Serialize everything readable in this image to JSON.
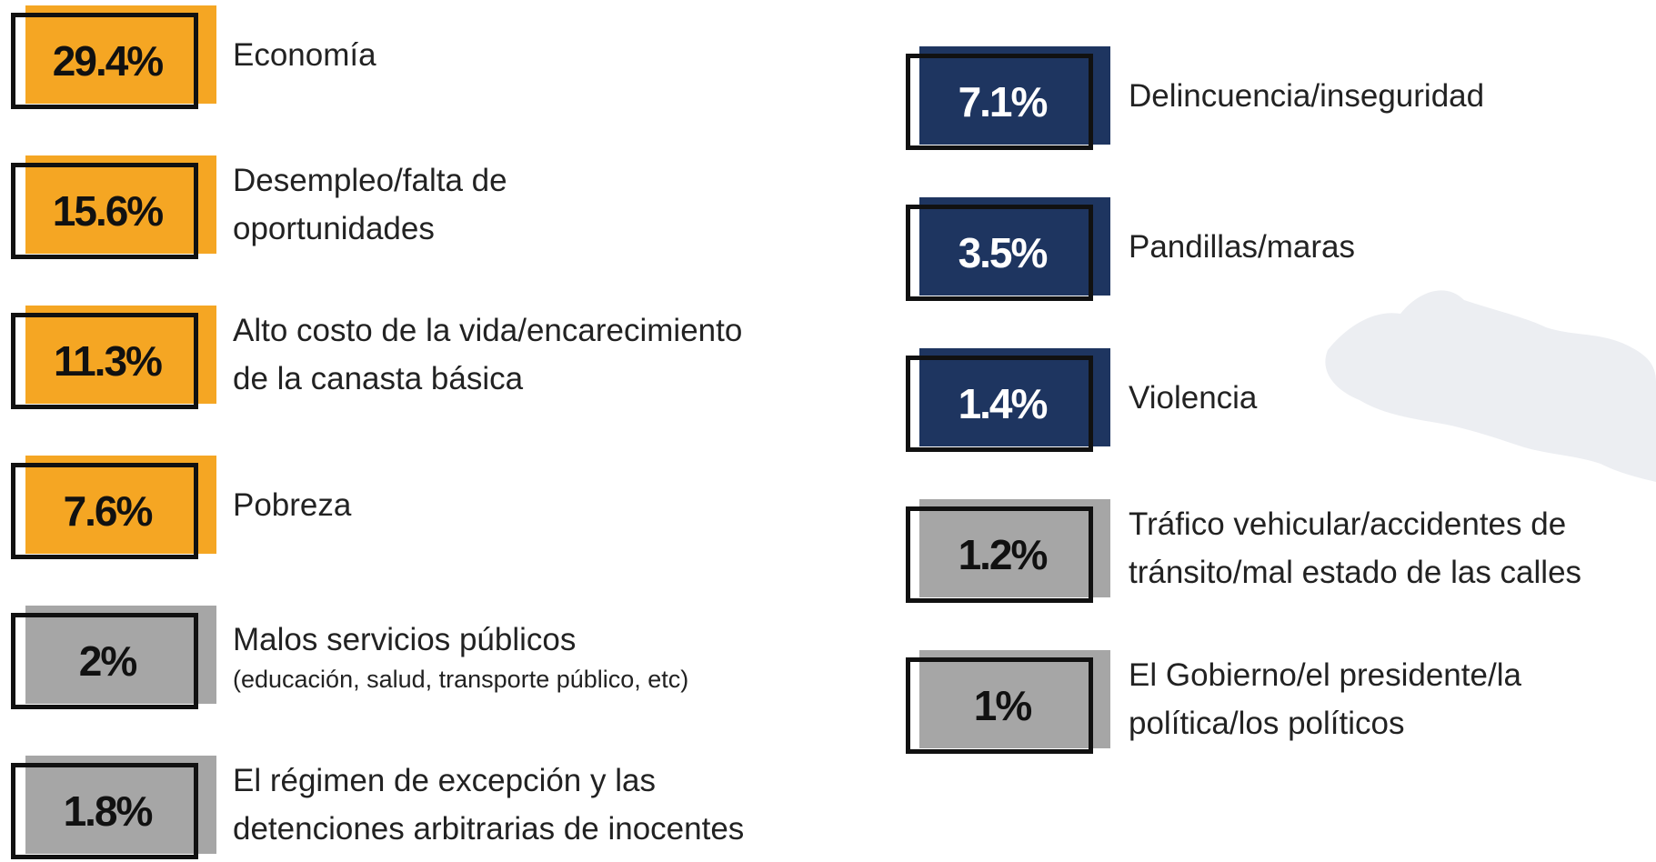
{
  "colors": {
    "economic": "#f5a623",
    "security": "#1e3560",
    "other": "#a6a6a6"
  },
  "left": [
    {
      "value": "29.4%",
      "lines": [
        "Economía"
      ],
      "group": "economic"
    },
    {
      "value": "15.6%",
      "lines": [
        "Desempleo/falta de",
        "oportunidades"
      ],
      "group": "economic"
    },
    {
      "value": "11.3%",
      "lines": [
        "Alto costo de la vida/encarecimiento",
        "de la canasta básica"
      ],
      "group": "economic"
    },
    {
      "value": "7.6%",
      "lines": [
        "Pobreza"
      ],
      "group": "economic"
    },
    {
      "value": "2%",
      "lines": [
        "Malos servicios públicos"
      ],
      "note": "(educación, salud, transporte público, etc)",
      "group": "other"
    },
    {
      "value": "1.8%",
      "lines": [
        "El régimen de excepción y las",
        "detenciones arbitrarias de inocentes"
      ],
      "group": "other"
    }
  ],
  "right": [
    {
      "value": "7.1%",
      "lines": [
        "Delincuencia/inseguridad"
      ],
      "group": "security"
    },
    {
      "value": "3.5%",
      "lines": [
        "Pandillas/maras"
      ],
      "group": "security"
    },
    {
      "value": "1.4%",
      "lines": [
        "Violencia"
      ],
      "group": "security"
    },
    {
      "value": "1.2%",
      "lines": [
        "Tráfico vehicular/accidentes de",
        "tránsito/mal estado de las calles"
      ],
      "group": "other"
    },
    {
      "value": "1%",
      "lines": [
        "El Gobierno/el presidente/la",
        "política/los políticos"
      ],
      "group": "other"
    }
  ]
}
